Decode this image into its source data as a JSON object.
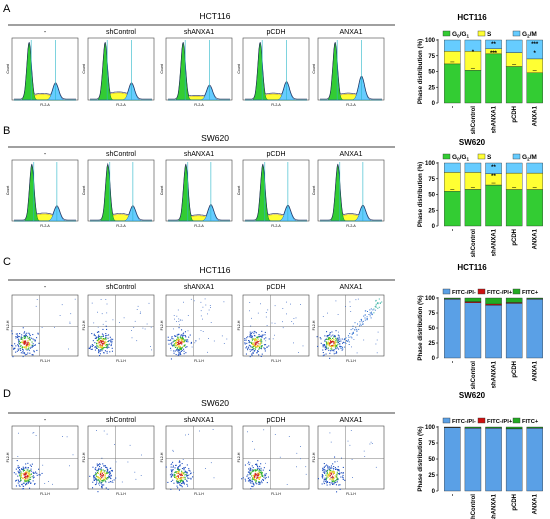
{
  "figure": {
    "panels": [
      {
        "label": "A",
        "cell_line": "HCT116",
        "assay": "cycle",
        "sample_titles": [
          "-",
          "shControl",
          "shANXA1",
          "pCDH",
          "ANXA1"
        ]
      },
      {
        "label": "B",
        "cell_line": "SW620",
        "assay": "cycle",
        "sample_titles": [
          "-",
          "shControl",
          "shANXA1",
          "pCDH",
          "ANXA1"
        ]
      },
      {
        "label": "C",
        "cell_line": "HCT116",
        "assay": "apoptosis",
        "sample_titles": [
          "-",
          "shControl",
          "shANXA1",
          "pCDH",
          "ANXA1"
        ]
      },
      {
        "label": "D",
        "cell_line": "SW620",
        "assay": "apoptosis",
        "sample_titles": [
          "-",
          "shControl",
          "shANXA1",
          "pCDH",
          "ANXA1"
        ]
      }
    ],
    "histogram_axis": {
      "xlabel": "FL2-A",
      "ylabel": "Count"
    },
    "scatter_axis": {
      "xlabel": "FL1-H",
      "ylabel": "FL2-H"
    },
    "colors": {
      "g0g1": "#33cc33",
      "s": "#ffff33",
      "g2m": "#66ccff",
      "annexin_neg": "#5aa0e6",
      "fitc_neg_pi_pos": "#cc1111",
      "fitc_pos": "#22aa22"
    }
  },
  "chart_data": [
    {
      "type": "bar",
      "stacked": true,
      "title": "HCT116",
      "categories": [
        "-",
        "shControl",
        "shANXA1",
        "pCDH",
        "ANXA1"
      ],
      "series": [
        {
          "name": "G0/G1",
          "values": [
            62,
            52,
            78,
            58,
            48
          ],
          "color": "#33cc33"
        },
        {
          "name": "S",
          "values": [
            20,
            30,
            8,
            22,
            22
          ],
          "color": "#ffff33"
        },
        {
          "name": "G2/M",
          "values": [
            18,
            18,
            14,
            20,
            30
          ],
          "color": "#66ccff"
        }
      ],
      "annotations": [
        {
          "category": "shControl",
          "text": "*"
        },
        {
          "category": "shANXA1",
          "text": "**"
        },
        {
          "category": "shANXA1",
          "text": "***"
        },
        {
          "category": "ANXA1",
          "text": "***"
        },
        {
          "category": "ANXA1",
          "text": "*"
        }
      ],
      "ylabel": "Phase distribution (%)",
      "yticks": [
        0,
        25,
        50,
        75,
        100
      ],
      "ylim": [
        0,
        100
      ],
      "legend_position": "top"
    },
    {
      "type": "bar",
      "stacked": true,
      "title": "SW620",
      "categories": [
        "-",
        "shControl",
        "shANXA1",
        "pCDH",
        "ANXA1"
      ],
      "series": [
        {
          "name": "G0/G1",
          "values": [
            55,
            58,
            65,
            58,
            58
          ],
          "color": "#33cc33"
        },
        {
          "name": "S",
          "values": [
            30,
            27,
            18,
            26,
            26
          ],
          "color": "#ffff33"
        },
        {
          "name": "G2/M",
          "values": [
            15,
            15,
            17,
            16,
            16
          ],
          "color": "#66ccff"
        }
      ],
      "annotations": [
        {
          "category": "shANXA1",
          "text": "**"
        },
        {
          "category": "shANXA1",
          "text": "**"
        }
      ],
      "ylabel": "Phase distribution (%)",
      "yticks": [
        0,
        25,
        50,
        75,
        100
      ],
      "ylim": [
        0,
        100
      ],
      "legend_position": "top"
    },
    {
      "type": "bar",
      "stacked": true,
      "title": "HCT116",
      "categories": [
        "-",
        "shControl",
        "shANXA1",
        "pCDH",
        "ANXA1"
      ],
      "series": [
        {
          "name": "FITC-/PI-",
          "values": [
            98,
            92,
            88,
            91,
            98
          ],
          "color": "#5aa0e6"
        },
        {
          "name": "FITC-/PI+",
          "values": [
            0.5,
            2,
            2,
            1.5,
            0.5
          ],
          "color": "#cc1111"
        },
        {
          "name": "FITC+",
          "values": [
            1.5,
            6,
            10,
            7.5,
            1.5
          ],
          "color": "#22aa22"
        }
      ],
      "ylabel": "Phase distribution (%)",
      "yticks": [
        0,
        25,
        50,
        75,
        100
      ],
      "ylim": [
        0,
        100
      ],
      "legend_position": "top"
    },
    {
      "type": "bar",
      "stacked": true,
      "title": "SW620",
      "categories": [
        "-",
        "shControl",
        "shANXA1",
        "pCDH",
        "ANXA1"
      ],
      "series": [
        {
          "name": "FITC-/PI-",
          "values": [
            99,
            98,
            98,
            97,
            98
          ],
          "color": "#5aa0e6"
        },
        {
          "name": "FITC-/PI+",
          "values": [
            0.3,
            0.5,
            0.5,
            0.5,
            0.5
          ],
          "color": "#cc1111"
        },
        {
          "name": "FITC+",
          "values": [
            0.7,
            1.5,
            1.5,
            2.5,
            1.5
          ],
          "color": "#22aa22"
        }
      ],
      "ylabel": "Phase distribution (%)",
      "yticks": [
        0,
        25,
        50,
        75,
        100
      ],
      "ylim": [
        0,
        100
      ],
      "legend_position": "top"
    }
  ]
}
